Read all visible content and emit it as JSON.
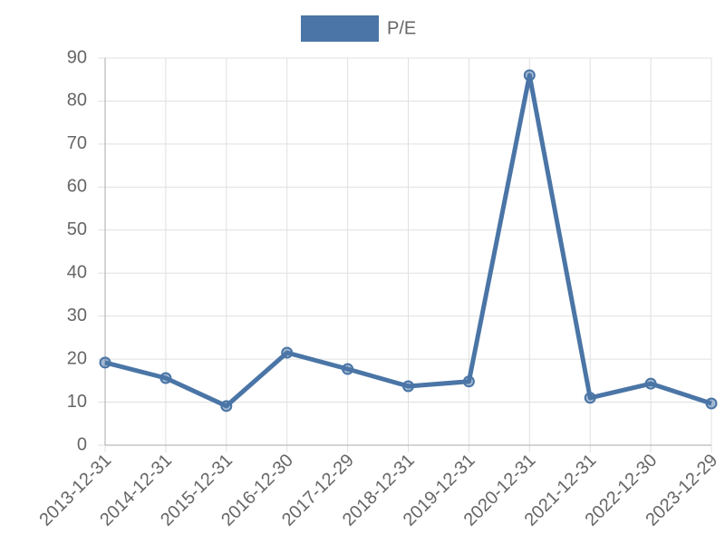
{
  "chart_data": {
    "type": "line",
    "categories": [
      "2013-12-31",
      "2014-12-31",
      "2015-12-31",
      "2016-12-30",
      "2017-12-29",
      "2018-12-31",
      "2019-12-31",
      "2020-12-31",
      "2021-12-31",
      "2022-12-30",
      "2023-12-29"
    ],
    "series": [
      {
        "name": "P/E",
        "color": "#4a75a6",
        "values": [
          19.2,
          15.6,
          9.1,
          21.5,
          17.7,
          13.7,
          14.8,
          86.0,
          11.0,
          14.3,
          9.7
        ]
      }
    ],
    "ylim": [
      0,
      90
    ],
    "yticks": [
      0,
      10,
      20,
      30,
      40,
      50,
      60,
      70,
      80,
      90
    ],
    "grid": true,
    "legend": "top"
  }
}
